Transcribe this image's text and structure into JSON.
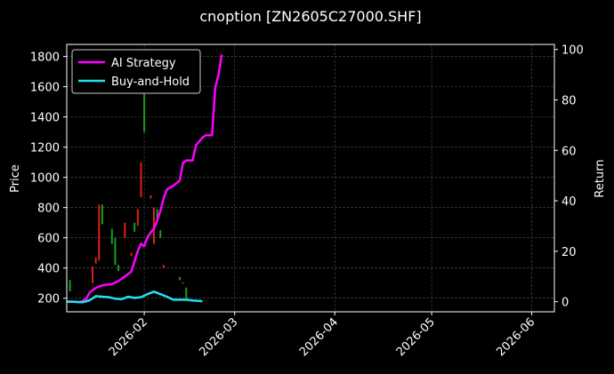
{
  "chart_data": {
    "type": "line",
    "title": "cnoption [ZN2605C27000.SHF]",
    "ylabel": "Price",
    "y2label": "Return",
    "x_range": [
      "2026-01-08",
      "2026-06-08"
    ],
    "ylim": [
      110,
      1880
    ],
    "y2lim": [
      -4.0,
      102.0
    ],
    "x_ticks": [
      "2026-02",
      "2026-03",
      "2026-04",
      "2026-05",
      "2026-06"
    ],
    "y_ticks": [
      200,
      400,
      600,
      800,
      1000,
      1200,
      1400,
      1600,
      1800
    ],
    "y2_ticks": [
      0,
      20,
      40,
      60,
      80,
      100
    ],
    "grid": true,
    "legend_position": "top-left",
    "colors": {
      "background": "#000000",
      "ai_strategy": "#ff00ff",
      "buy_and_hold": "#22e0f0",
      "candle_up": "#16a016",
      "candle_down": "#e02010",
      "grid": "#5a5a5a"
    },
    "candles": [
      {
        "date": "2026-01-09",
        "low": 245,
        "high": 320,
        "dir": "up"
      },
      {
        "date": "2026-01-16",
        "low": 300,
        "high": 410,
        "dir": "down"
      },
      {
        "date": "2026-01-17",
        "low": 430,
        "high": 470,
        "dir": "down"
      },
      {
        "date": "2026-01-18",
        "low": 450,
        "high": 820,
        "dir": "down"
      },
      {
        "date": "2026-01-19",
        "low": 690,
        "high": 820,
        "dir": "up"
      },
      {
        "date": "2026-01-22",
        "low": 560,
        "high": 660,
        "dir": "up"
      },
      {
        "date": "2026-01-23",
        "low": 420,
        "high": 600,
        "dir": "up"
      },
      {
        "date": "2026-01-24",
        "low": 380,
        "high": 420,
        "dir": "up"
      },
      {
        "date": "2026-01-26",
        "low": 600,
        "high": 700,
        "dir": "down"
      },
      {
        "date": "2026-01-28",
        "low": 480,
        "high": 500,
        "dir": "down"
      },
      {
        "date": "2026-01-29",
        "low": 640,
        "high": 700,
        "dir": "up"
      },
      {
        "date": "2026-01-30",
        "low": 680,
        "high": 790,
        "dir": "down"
      },
      {
        "date": "2026-01-31",
        "low": 870,
        "high": 1100,
        "dir": "down"
      },
      {
        "date": "2026-02-01",
        "low": 1300,
        "high": 1780,
        "dir": "up"
      },
      {
        "date": "2026-02-03",
        "low": 860,
        "high": 880,
        "dir": "down"
      },
      {
        "date": "2026-02-04",
        "low": 560,
        "high": 800,
        "dir": "down"
      },
      {
        "date": "2026-02-05",
        "low": 720,
        "high": 790,
        "dir": "up"
      },
      {
        "date": "2026-02-06",
        "low": 600,
        "high": 650,
        "dir": "up"
      },
      {
        "date": "2026-02-07",
        "low": 400,
        "high": 420,
        "dir": "down"
      },
      {
        "date": "2026-02-12",
        "low": 320,
        "high": 340,
        "dir": "up"
      },
      {
        "date": "2026-02-13",
        "low": 300,
        "high": 305,
        "dir": "down"
      },
      {
        "date": "2026-02-14",
        "low": 200,
        "high": 270,
        "dir": "up"
      }
    ],
    "series": [
      {
        "name": "AI Strategy",
        "points": [
          [
            "2026-01-08",
            0.0
          ],
          [
            "2026-01-10",
            0.0
          ],
          [
            "2026-01-12",
            -0.2
          ],
          [
            "2026-01-14",
            1.0
          ],
          [
            "2026-01-15",
            3.5
          ],
          [
            "2026-01-17",
            5.5
          ],
          [
            "2026-01-19",
            6.5
          ],
          [
            "2026-01-22",
            7.0
          ],
          [
            "2026-01-24",
            8.2
          ],
          [
            "2026-01-26",
            10.0
          ],
          [
            "2026-01-27",
            11.0
          ],
          [
            "2026-01-28",
            12.0
          ],
          [
            "2026-01-29",
            16.0
          ],
          [
            "2026-01-30",
            20.0
          ],
          [
            "2026-01-31",
            23.0
          ],
          [
            "2026-02-01",
            22.0
          ],
          [
            "2026-02-02",
            25.5
          ],
          [
            "2026-02-03",
            27.5
          ],
          [
            "2026-02-04",
            29.0
          ],
          [
            "2026-02-05",
            32.0
          ],
          [
            "2026-02-06",
            36.0
          ],
          [
            "2026-02-07",
            41.0
          ],
          [
            "2026-02-08",
            44.5
          ],
          [
            "2026-02-10",
            46.0
          ],
          [
            "2026-02-11",
            47.0
          ],
          [
            "2026-02-12",
            48.0
          ],
          [
            "2026-02-13",
            55.0
          ],
          [
            "2026-02-14",
            56.0
          ],
          [
            "2026-02-16",
            56.0
          ],
          [
            "2026-02-17",
            62.0
          ],
          [
            "2026-02-19",
            65.0
          ],
          [
            "2026-02-20",
            66.0
          ],
          [
            "2026-02-22",
            66.0
          ],
          [
            "2026-02-23",
            85.0
          ],
          [
            "2026-02-24",
            90.0
          ],
          [
            "2026-02-25",
            98.0
          ]
        ]
      },
      {
        "name": "Buy-and-Hold",
        "points": [
          [
            "2026-01-08",
            0.0
          ],
          [
            "2026-01-10",
            0.0
          ],
          [
            "2026-01-13",
            -0.2
          ],
          [
            "2026-01-15",
            0.5
          ],
          [
            "2026-01-17",
            2.2
          ],
          [
            "2026-01-19",
            2.0
          ],
          [
            "2026-01-21",
            1.8
          ],
          [
            "2026-01-23",
            1.2
          ],
          [
            "2026-01-25",
            1.0
          ],
          [
            "2026-01-27",
            2.0
          ],
          [
            "2026-01-29",
            1.5
          ],
          [
            "2026-01-31",
            1.8
          ],
          [
            "2026-02-02",
            3.0
          ],
          [
            "2026-02-04",
            4.0
          ],
          [
            "2026-02-06",
            3.0
          ],
          [
            "2026-02-08",
            2.0
          ],
          [
            "2026-02-10",
            0.8
          ],
          [
            "2026-02-12",
            0.8
          ],
          [
            "2026-02-14",
            0.8
          ],
          [
            "2026-02-16",
            0.5
          ],
          [
            "2026-02-18",
            0.3
          ],
          [
            "2026-02-19",
            0.2
          ]
        ]
      }
    ]
  }
}
